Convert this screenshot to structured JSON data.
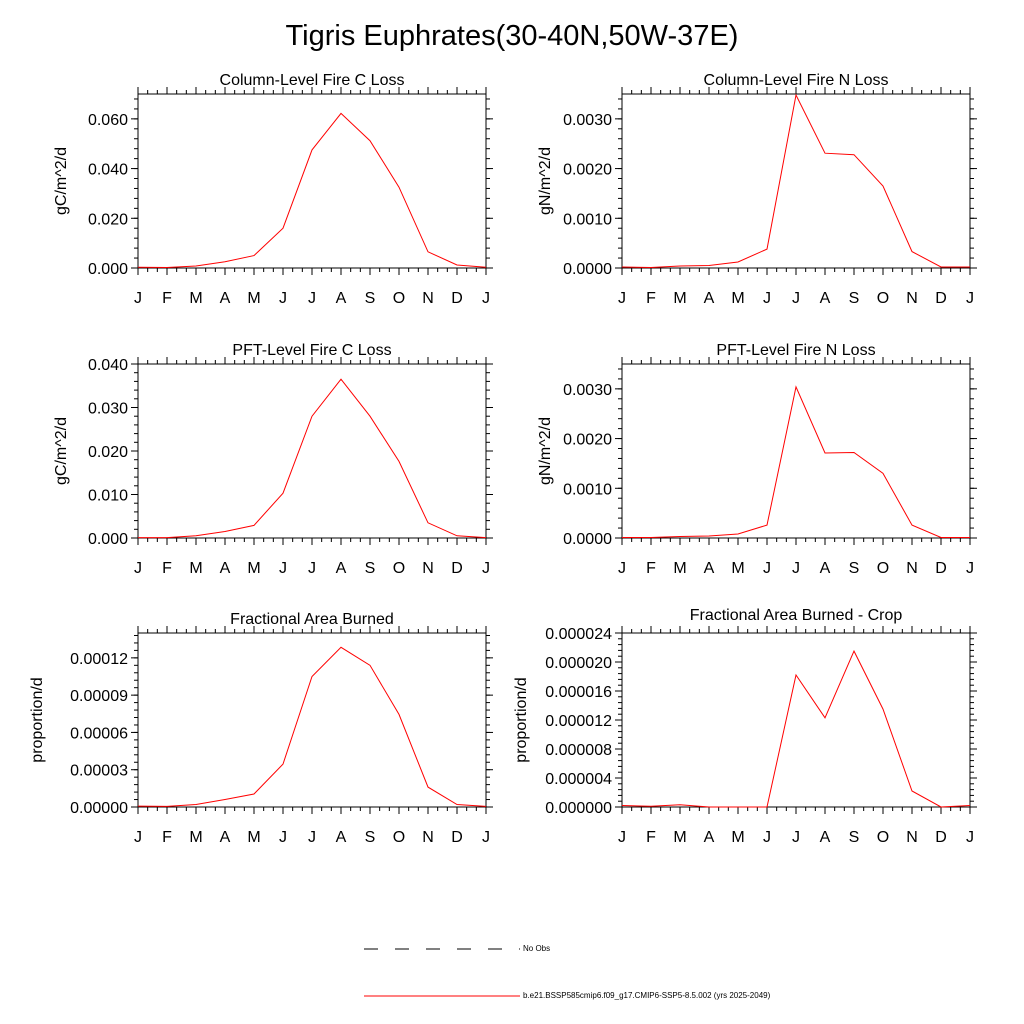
{
  "page_title": "Tigris Euphrates(30-40N,50W-37E)",
  "legend": {
    "no_obs_label": "No Obs",
    "model_label": "b.e21.BSSP585cmip6.f09_g17.CMIP6-SSP5-8.5.002 (yrs 2025-2049)",
    "no_obs_color": "#000000",
    "model_color": "#ff0000"
  },
  "chart_data": [
    {
      "type": "line",
      "title": "Column-Level Fire C Loss",
      "ylabel": "gC/m^2/d",
      "x": [
        "J",
        "F",
        "M",
        "A",
        "M",
        "J",
        "J",
        "A",
        "S",
        "O",
        "N",
        "D",
        "J"
      ],
      "ylim": [
        0,
        0.07
      ],
      "yticks": [
        0,
        0.02,
        0.04,
        0.06
      ],
      "ytick_labels": [
        "0.000",
        "0.020",
        "0.040",
        "0.060"
      ],
      "series": [
        {
          "values": [
            0.0003,
            0.0002,
            0.0008,
            0.0025,
            0.005,
            0.016,
            0.0475,
            0.0622,
            0.0512,
            0.0325,
            0.0065,
            0.0012,
            0.0003
          ],
          "color": "#ff0000"
        }
      ]
    },
    {
      "type": "line",
      "title": "Column-Level Fire N Loss",
      "ylabel": "gN/m^2/d",
      "x": [
        "J",
        "F",
        "M",
        "A",
        "M",
        "J",
        "J",
        "A",
        "S",
        "O",
        "N",
        "D",
        "J"
      ],
      "ylim": [
        0,
        0.0035
      ],
      "yticks": [
        0,
        0.001,
        0.002,
        0.003
      ],
      "ytick_labels": [
        "0.0000",
        "0.0010",
        "0.0020",
        "0.0030"
      ],
      "series": [
        {
          "values": [
            2e-05,
            1e-05,
            4e-05,
            5e-05,
            0.00012,
            0.00038,
            0.00348,
            0.00231,
            0.00228,
            0.00165,
            0.00033,
            2e-05,
            2e-05
          ],
          "color": "#ff0000"
        }
      ]
    },
    {
      "type": "line",
      "title": "PFT-Level Fire C Loss",
      "ylabel": "gC/m^2/d",
      "x": [
        "J",
        "F",
        "M",
        "A",
        "M",
        "J",
        "J",
        "A",
        "S",
        "O",
        "N",
        "D",
        "J"
      ],
      "ylim": [
        0,
        0.04
      ],
      "yticks": [
        0,
        0.01,
        0.02,
        0.03,
        0.04
      ],
      "ytick_labels": [
        "0.000",
        "0.010",
        "0.020",
        "0.030",
        "0.040"
      ],
      "series": [
        {
          "values": [
            0.0001,
            0.0001,
            0.0005,
            0.0015,
            0.0029,
            0.0103,
            0.028,
            0.0365,
            0.028,
            0.0176,
            0.0035,
            0.0005,
            0.0001
          ],
          "color": "#ff0000"
        }
      ]
    },
    {
      "type": "line",
      "title": "PFT-Level Fire N Loss",
      "ylabel": "gN/m^2/d",
      "x": [
        "J",
        "F",
        "M",
        "A",
        "M",
        "J",
        "J",
        "A",
        "S",
        "O",
        "N",
        "D",
        "J"
      ],
      "ylim": [
        0,
        0.0035
      ],
      "yticks": [
        0,
        0.001,
        0.002,
        0.003
      ],
      "ytick_labels": [
        "0.0000",
        "0.0010",
        "0.0020",
        "0.0030"
      ],
      "series": [
        {
          "values": [
            1e-05,
            1e-05,
            3e-05,
            4e-05,
            8e-05,
            0.00026,
            0.00304,
            0.00171,
            0.00172,
            0.0013,
            0.00026,
            1e-05,
            1e-05
          ],
          "color": "#ff0000"
        }
      ]
    },
    {
      "type": "line",
      "title": "Fractional Area Burned",
      "ylabel": "proportion/d",
      "x": [
        "J",
        "F",
        "M",
        "A",
        "M",
        "J",
        "J",
        "A",
        "S",
        "O",
        "N",
        "D",
        "J"
      ],
      "ylim": [
        0,
        0.00014
      ],
      "yticks": [
        0,
        3e-05,
        6e-05,
        9e-05,
        0.00012
      ],
      "ytick_labels": [
        "0.00000",
        "0.00003",
        "0.00006",
        "0.00009",
        "0.00012"
      ],
      "series": [
        {
          "values": [
            7e-07,
            5e-07,
            2e-06,
            6e-06,
            1.05e-05,
            3.45e-05,
            0.000105,
            0.0001285,
            0.000114,
            7.45e-05,
            1.6e-05,
            2e-06,
            5e-07
          ],
          "color": "#ff0000"
        }
      ]
    },
    {
      "type": "line",
      "title": "Fractional Area Burned - Crop",
      "ylabel": "proportion/d",
      "x": [
        "J",
        "F",
        "M",
        "A",
        "M",
        "J",
        "J",
        "A",
        "S",
        "O",
        "N",
        "D",
        "J"
      ],
      "ylim": [
        0,
        2.4e-05
      ],
      "yticks": [
        0,
        4e-06,
        8e-06,
        1.2e-05,
        1.6e-05,
        2e-05,
        2.4e-05
      ],
      "ytick_labels": [
        "0.000000",
        "0.000004",
        "0.000008",
        "0.000012",
        "0.000016",
        "0.000020",
        "0.000024"
      ],
      "series": [
        {
          "values": [
            2e-07,
            1e-07,
            3e-07,
            0,
            0,
            0,
            1.82e-05,
            1.23e-05,
            2.15e-05,
            1.35e-05,
            2.2e-06,
            0,
            2e-07
          ],
          "color": "#ff0000"
        }
      ]
    }
  ]
}
